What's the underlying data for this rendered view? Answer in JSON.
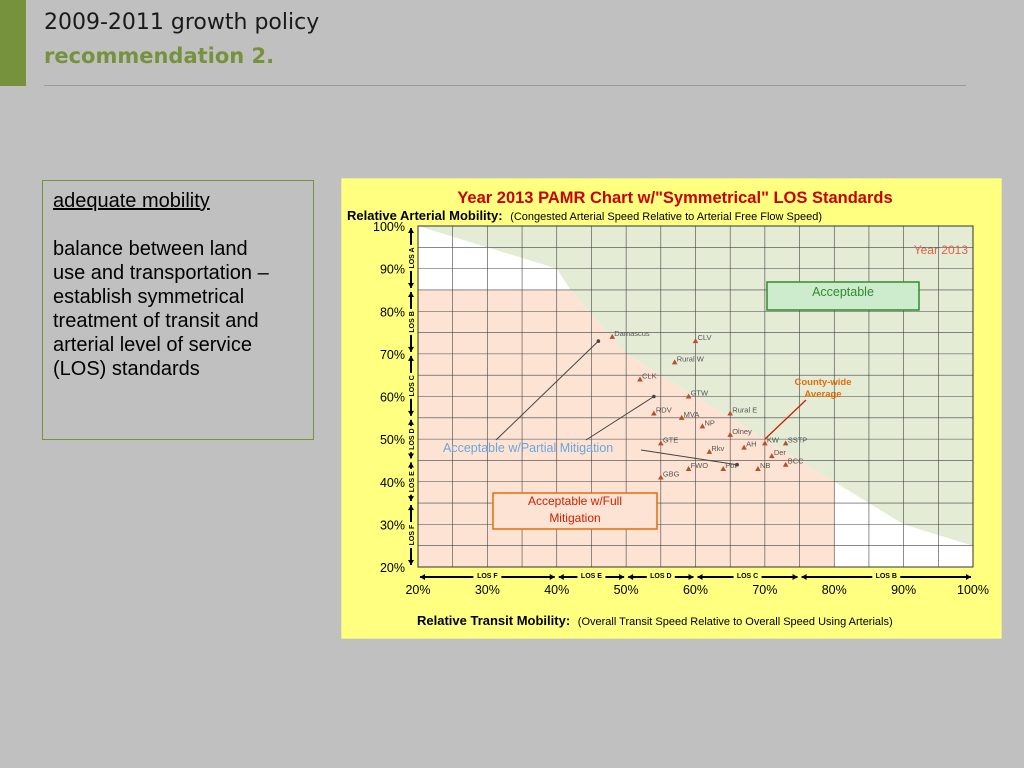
{
  "slide": {
    "title_line1": "2009-2011 growth policy",
    "title_line2": "recommendation 2.",
    "accent_color": "#76923c"
  },
  "textbox": {
    "heading": "adequate mobility",
    "lines": [
      "balance between land",
      "use and transportation –",
      "establish symmetrical",
      "treatment of transit and",
      "arterial level of service",
      "(LOS) standards"
    ]
  },
  "chart_data": {
    "type": "scatter",
    "title": "Year 2013 PAMR Chart w/\"Symmetrical\" LOS Standards",
    "ylabel_bold": "Relative Arterial Mobility:",
    "ylabel_note": "(Congested Arterial Speed Relative to Arterial Free Flow Speed)",
    "xlabel_bold": "Relative Transit Mobility:",
    "xlabel_note": "(Overall Transit Speed Relative to Overall Speed Using Arterials)",
    "xlim": [
      20,
      100
    ],
    "ylim": [
      20,
      100
    ],
    "xticks": [
      "20%",
      "30%",
      "40%",
      "50%",
      "60%",
      "70%",
      "80%",
      "90%",
      "100%"
    ],
    "yticks": [
      "20%",
      "30%",
      "40%",
      "50%",
      "60%",
      "70%",
      "80%",
      "90%",
      "100%"
    ],
    "grid": true,
    "year_label": "Year 2013",
    "region_labels": {
      "acceptable": "Acceptable",
      "partial": "Acceptable w/Partial Mitigation",
      "full_line1": "Acceptable w/Full",
      "full_line2": "Mitigation",
      "county_line1": "County-wide",
      "county_line2": "Average"
    },
    "x_los": [
      {
        "label": "LOS F",
        "from": 20,
        "to": 40
      },
      {
        "label": "LOS E",
        "from": 40,
        "to": 50
      },
      {
        "label": "LOS D",
        "from": 50,
        "to": 60
      },
      {
        "label": "LOS C",
        "from": 60,
        "to": 75
      },
      {
        "label": "LOS B",
        "from": 75,
        "to": 100
      }
    ],
    "y_los": [
      {
        "label": "LOS F",
        "from": 20,
        "to": 35
      },
      {
        "label": "LOS E",
        "from": 35,
        "to": 45
      },
      {
        "label": "LOS D",
        "from": 45,
        "to": 55
      },
      {
        "label": "LOS C",
        "from": 55,
        "to": 70
      },
      {
        "label": "LOS B",
        "from": 70,
        "to": 85
      },
      {
        "label": "LOS A",
        "from": 85,
        "to": 100
      }
    ],
    "boundary": [
      [
        20,
        100
      ],
      [
        40,
        90
      ],
      [
        42,
        85
      ],
      [
        50,
        70
      ],
      [
        60,
        60
      ],
      [
        70,
        50
      ],
      [
        80,
        40
      ],
      [
        90,
        30
      ],
      [
        100,
        25
      ]
    ],
    "points": [
      {
        "name": "Damascus",
        "x": 48,
        "y": 74
      },
      {
        "name": "CLV",
        "x": 60,
        "y": 73
      },
      {
        "name": "Rural W",
        "x": 57,
        "y": 68
      },
      {
        "name": "CLK",
        "x": 52,
        "y": 64
      },
      {
        "name": "GTW",
        "x": 59,
        "y": 60
      },
      {
        "name": "RDV",
        "x": 54,
        "y": 56
      },
      {
        "name": "MVA",
        "x": 58,
        "y": 55
      },
      {
        "name": "Rural E",
        "x": 65,
        "y": 56
      },
      {
        "name": "NP",
        "x": 61,
        "y": 53
      },
      {
        "name": "Olney",
        "x": 65,
        "y": 51
      },
      {
        "name": "GTE",
        "x": 55,
        "y": 49
      },
      {
        "name": "Rkv",
        "x": 62,
        "y": 47
      },
      {
        "name": "AH",
        "x": 67,
        "y": 48
      },
      {
        "name": "KW",
        "x": 70,
        "y": 49
      },
      {
        "name": "SSTP",
        "x": 73,
        "y": 49
      },
      {
        "name": "Der",
        "x": 71,
        "y": 46
      },
      {
        "name": "BCC",
        "x": 73,
        "y": 44
      },
      {
        "name": "FWO",
        "x": 59,
        "y": 43
      },
      {
        "name": "Pot",
        "x": 64,
        "y": 43
      },
      {
        "name": "NB",
        "x": 69,
        "y": 43
      },
      {
        "name": "GBG",
        "x": 55,
        "y": 41
      }
    ],
    "county_average": {
      "x": 70,
      "y": 50
    }
  }
}
